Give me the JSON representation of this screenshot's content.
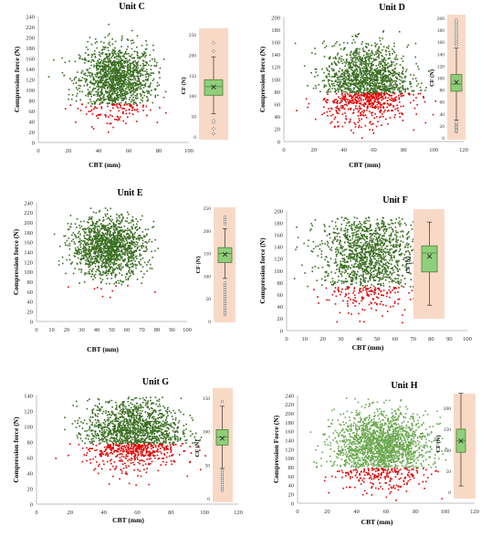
{
  "colors": {
    "above": "#3b6e22",
    "above_light": "#6aa84f",
    "below": "#e00000",
    "box_fill": "#8fce7a",
    "box_stroke": "#4f7f3a",
    "box_bg": "#f8d9c6",
    "axis": "#bfbfbf"
  },
  "chart_data": [
    {
      "type": "scatter",
      "title": "Unit C",
      "xlabel": "CBT (mm)",
      "ylabel": "Compression force (N)",
      "xlim": [
        0,
        100
      ],
      "xticks": [
        0,
        20,
        40,
        60,
        80,
        100
      ],
      "ylim": [
        0,
        240
      ],
      "yticks": [
        0,
        20,
        40,
        60,
        80,
        100,
        120,
        140,
        160,
        180,
        200,
        220,
        240
      ],
      "threshold": 73,
      "cluster": {
        "xmean": 52,
        "xsd": 12,
        "ymean": 120,
        "ysd": 32,
        "n": 1500,
        "ymin": 15,
        "ymax": 235
      },
      "boxplot": {
        "ylabel": "CF (N)",
        "ylim": [
          0,
          250
        ],
        "yticks": [
          0,
          50,
          100,
          150,
          200,
          250
        ],
        "whisker_low": 57,
        "q1": 102,
        "median": 123,
        "mean": 122,
        "q3": 140,
        "whisker_high": 196,
        "outliers": [
          8,
          20,
          35,
          40,
          210,
          230
        ]
      }
    },
    {
      "type": "scatter",
      "title": "Unit D",
      "xlabel": "CBT (mm)",
      "ylabel": "Compression force (N)",
      "xlim": [
        0,
        120
      ],
      "xticks": [
        0,
        20,
        40,
        60,
        80,
        100,
        120
      ],
      "ylim": [
        0,
        200
      ],
      "yticks": [
        0,
        20,
        40,
        60,
        80,
        100,
        120,
        140,
        160,
        180,
        200
      ],
      "threshold": 78,
      "cluster": {
        "xmean": 55,
        "xsd": 14,
        "ymean": 95,
        "ysd": 30,
        "n": 1700,
        "ymin": 5,
        "ymax": 190
      },
      "boxplot": {
        "ylabel": "CF (N)",
        "ylim": [
          0,
          200
        ],
        "yticks": [
          0,
          20,
          40,
          60,
          80,
          100,
          120,
          140,
          160,
          180,
          200
        ],
        "whisker_low": 30,
        "q1": 78,
        "median": 90,
        "mean": 93,
        "q3": 106,
        "whisker_high": 150,
        "outliers": [
          10,
          12,
          14,
          16,
          18,
          20,
          22,
          24,
          26,
          155,
          158,
          161,
          164,
          167,
          170,
          173,
          176,
          179,
          182,
          185,
          188,
          191,
          194,
          197
        ]
      }
    },
    {
      "type": "scatter",
      "title": "Unit E",
      "xlabel": "CBT (mm)",
      "ylabel": "Compression force (N)",
      "xlim": [
        0,
        100
      ],
      "xticks": [
        0,
        10,
        20,
        30,
        40,
        50,
        60,
        70,
        80,
        90,
        100
      ],
      "ylim": [
        0,
        240
      ],
      "yticks": [
        0,
        20,
        40,
        60,
        80,
        100,
        120,
        140,
        160,
        180,
        200,
        220,
        240
      ],
      "threshold": 73,
      "cluster": {
        "xmean": 48,
        "xsd": 12,
        "ymean": 150,
        "ysd": 30,
        "n": 1500,
        "ymin": 10,
        "ymax": 232
      },
      "boxplot": {
        "ylabel": "CF (N)",
        "ylim": [
          0,
          250
        ],
        "yticks": [
          0,
          50,
          100,
          150,
          200,
          250
        ],
        "whisker_low": 95,
        "q1": 130,
        "median": 150,
        "mean": 148,
        "q3": 163,
        "whisker_high": 205,
        "outliers": [
          15,
          20,
          25,
          30,
          35,
          40,
          45,
          50,
          55,
          60,
          65,
          70,
          75,
          80,
          85,
          215,
          220,
          225,
          230
        ]
      }
    },
    {
      "type": "scatter",
      "title": "Unit F",
      "xlabel": "CBT (mm)",
      "ylabel": "Compression force (N)",
      "xlim": [
        0,
        100
      ],
      "xticks": [
        0,
        10,
        20,
        30,
        40,
        50,
        60,
        70,
        80,
        90,
        100
      ],
      "ylim": [
        0,
        200
      ],
      "yticks": [
        0,
        20,
        40,
        60,
        80,
        100,
        120,
        140,
        160,
        180,
        200
      ],
      "threshold": 73,
      "cluster": {
        "xmean": 45,
        "xsd": 13,
        "ymean": 125,
        "ysd": 40,
        "n": 1500,
        "ymin": 12,
        "ymax": 190
      },
      "boxplot": {
        "ylabel": "CF (N)",
        "ylim": [
          0,
          200
        ],
        "yticks": [],
        "whisker_low": 15,
        "q1": 85,
        "median": 125,
        "mean": 118,
        "q3": 140,
        "whisker_high": 190,
        "outliers": []
      }
    },
    {
      "type": "scatter",
      "title": "Unit G",
      "xlabel": "CBT (mm)",
      "ylabel": "Compression force (N)",
      "xlim": [
        0,
        120
      ],
      "xticks": [
        0,
        20,
        40,
        60,
        80,
        100,
        120
      ],
      "ylim": [
        0,
        140
      ],
      "yticks": [
        0,
        20,
        40,
        60,
        80,
        100,
        120,
        140
      ],
      "threshold": 78,
      "cluster": {
        "xmean": 58,
        "xsd": 14,
        "ymean": 92,
        "ysd": 22,
        "n": 1700,
        "ymin": 10,
        "ymax": 138
      },
      "boxplot": {
        "ylabel": "CF (N)",
        "ylim": [
          0,
          150
        ],
        "yticks": [
          0,
          50,
          100,
          150
        ],
        "whisker_low": 45,
        "q1": 80,
        "median": 92,
        "mean": 90,
        "q3": 103,
        "whisker_high": 138,
        "outliers": [
          12,
          15,
          18,
          21,
          24,
          27,
          30,
          33,
          36,
          39,
          42,
          145
        ]
      }
    },
    {
      "type": "scatter",
      "title": "Unit H",
      "xlabel": "CBT (mm)",
      "ylabel": "Compression Force (N)",
      "xlim": [
        0,
        120
      ],
      "xticks": [
        0,
        20,
        40,
        60,
        80,
        100,
        120
      ],
      "ylim": [
        0,
        240
      ],
      "yticks": [
        0,
        20,
        40,
        60,
        80,
        100,
        120,
        140,
        160,
        180,
        200,
        220,
        240
      ],
      "threshold": 78,
      "cluster": {
        "xmean": 57,
        "xsd": 16,
        "ymean": 125,
        "ysd": 38,
        "n": 2000,
        "ymin": 5,
        "ymax": 235
      },
      "boxplot": {
        "ylabel": "CF (N)",
        "ylim": [
          0,
          230
        ],
        "yticks": [
          0,
          50,
          100,
          150,
          200
        ],
        "whisker_low": 15,
        "q1": 95,
        "median": 122,
        "mean": 122,
        "q3": 150,
        "whisker_high": 235,
        "outliers": []
      }
    }
  ]
}
